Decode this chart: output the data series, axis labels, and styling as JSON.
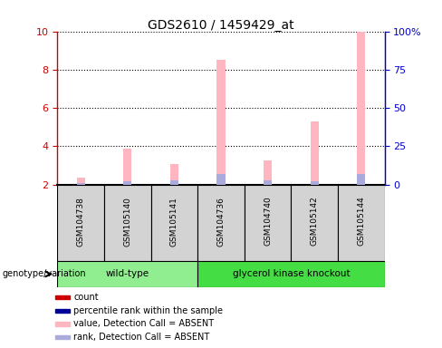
{
  "title": "GDS2610 / 1459429_at",
  "samples": [
    "GSM104738",
    "GSM105140",
    "GSM105141",
    "GSM104736",
    "GSM104740",
    "GSM105142",
    "GSM105144"
  ],
  "group_labels": [
    "wild-type",
    "glycerol kinase knockout"
  ],
  "pink_bar_values": [
    2.35,
    3.85,
    3.05,
    8.5,
    3.25,
    5.3,
    10.0
  ],
  "blue_bar_values": [
    2.08,
    2.18,
    2.22,
    2.55,
    2.22,
    2.18,
    2.55
  ],
  "ylim_left": [
    2,
    10
  ],
  "yticks_left": [
    2,
    4,
    6,
    8,
    10
  ],
  "ylim_right": [
    0,
    100
  ],
  "yticks_right": [
    0,
    25,
    50,
    75,
    100
  ],
  "ytick_labels_right": [
    "0",
    "25",
    "50",
    "75",
    "100%"
  ],
  "left_axis_color": "#CC0000",
  "right_axis_color": "#0000CC",
  "bar_width": 0.18,
  "pink_color": "#FFB6C1",
  "blue_color": "#AAAADD",
  "sample_bg_color": "#D3D3D3",
  "wt_group_color": "#90EE90",
  "ko_group_color": "#44DD44",
  "legend_items": [
    {
      "color": "#CC0000",
      "label": "count"
    },
    {
      "color": "#000099",
      "label": "percentile rank within the sample"
    },
    {
      "color": "#FFB6C1",
      "label": "value, Detection Call = ABSENT"
    },
    {
      "color": "#AAAADD",
      "label": "rank, Detection Call = ABSENT"
    }
  ]
}
